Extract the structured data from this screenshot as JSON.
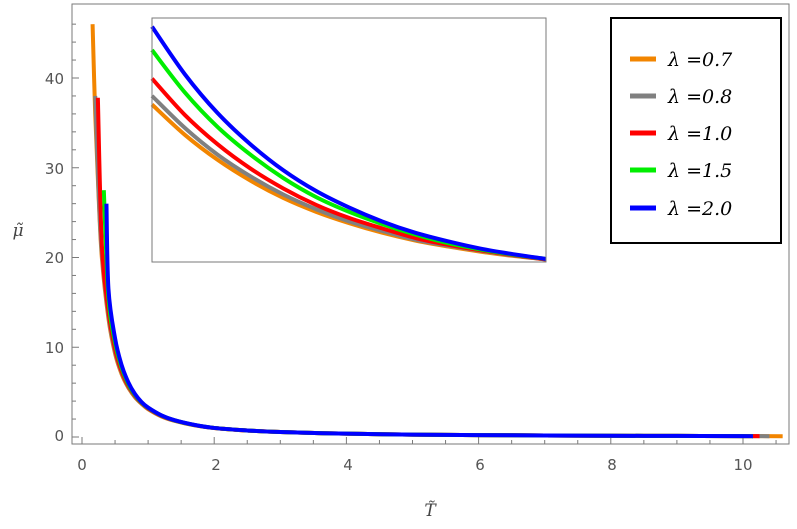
{
  "chart_data": [
    {
      "type": "line",
      "title": "",
      "xlabel": "T̃",
      "ylabel": "μ̃",
      "xlim": [
        0,
        10.9
      ],
      "ylim": [
        -1,
        47
      ],
      "x_ticks": [
        0,
        2,
        4,
        6,
        8,
        10
      ],
      "y_ticks": [
        0,
        10,
        20,
        30,
        40
      ],
      "grid": false,
      "legend_position": "top-right",
      "series": [
        {
          "name": "λ =0.7",
          "color": "#F28500",
          "x": [
            0.16,
            0.2,
            0.25,
            0.3,
            0.4,
            0.5,
            0.6,
            0.7,
            0.8,
            0.9,
            1.0,
            1.2,
            1.4,
            1.7,
            2.0,
            2.5,
            3.0,
            4.0,
            5.0,
            6.0,
            7.0,
            8.0,
            9.0,
            10.0,
            10.6
          ],
          "y": [
            46.0,
            36.0,
            27.0,
            20.0,
            13.2,
            9.3,
            7.0,
            5.5,
            4.45,
            3.7,
            3.1,
            2.3,
            1.8,
            1.3,
            1.0,
            0.72,
            0.55,
            0.37,
            0.27,
            0.21,
            0.17,
            0.14,
            0.12,
            0.1,
            0.09
          ]
        },
        {
          "name": "λ =0.8",
          "color": "#808080",
          "x": [
            0.2,
            0.25,
            0.3,
            0.4,
            0.5,
            0.6,
            0.7,
            0.8,
            0.9,
            1.0,
            1.2,
            1.4,
            1.7,
            2.0,
            2.5,
            3.0,
            4.0,
            5.0,
            6.0,
            7.0,
            8.0,
            9.0,
            10.0,
            10.4
          ],
          "y": [
            38.0,
            27.5,
            20.5,
            13.5,
            9.5,
            7.15,
            5.6,
            4.5,
            3.75,
            3.15,
            2.33,
            1.82,
            1.32,
            1.0,
            0.72,
            0.55,
            0.37,
            0.27,
            0.21,
            0.17,
            0.14,
            0.12,
            0.1,
            0.09
          ]
        },
        {
          "name": "λ =1.0",
          "color": "#FF0000",
          "x": [
            0.24,
            0.3,
            0.4,
            0.5,
            0.6,
            0.7,
            0.8,
            0.9,
            1.0,
            1.2,
            1.4,
            1.7,
            2.0,
            2.5,
            3.0,
            4.0,
            5.0,
            6.0,
            7.0,
            8.0,
            9.0,
            10.0,
            10.25
          ],
          "y": [
            37.8,
            21.5,
            14.0,
            9.8,
            7.3,
            5.7,
            4.6,
            3.8,
            3.2,
            2.36,
            1.84,
            1.33,
            1.0,
            0.72,
            0.55,
            0.37,
            0.27,
            0.21,
            0.17,
            0.14,
            0.12,
            0.1,
            0.09
          ]
        },
        {
          "name": "λ =1.5",
          "color": "#00EE00",
          "x": [
            0.33,
            0.4,
            0.5,
            0.6,
            0.7,
            0.8,
            0.9,
            1.0,
            1.2,
            1.4,
            1.7,
            2.0,
            2.5,
            3.0,
            4.0,
            5.0,
            6.0,
            7.0,
            8.0,
            9.0,
            10.0,
            10.15
          ],
          "y": [
            27.5,
            15.5,
            10.5,
            7.7,
            5.9,
            4.7,
            3.85,
            3.25,
            2.4,
            1.86,
            1.34,
            1.01,
            0.73,
            0.55,
            0.37,
            0.27,
            0.21,
            0.17,
            0.14,
            0.12,
            0.1,
            0.09
          ]
        },
        {
          "name": "λ =2.0",
          "color": "#0000FF",
          "x": [
            0.37,
            0.4,
            0.5,
            0.6,
            0.7,
            0.8,
            0.9,
            1.0,
            1.2,
            1.4,
            1.7,
            2.0,
            2.5,
            3.0,
            4.0,
            5.0,
            6.0,
            7.0,
            8.0,
            9.0,
            10.0,
            10.15
          ],
          "y": [
            26.0,
            16.5,
            11.0,
            8.0,
            6.1,
            4.8,
            3.9,
            3.28,
            2.42,
            1.87,
            1.35,
            1.01,
            0.73,
            0.55,
            0.37,
            0.27,
            0.21,
            0.17,
            0.14,
            0.12,
            0.1,
            0.09
          ]
        }
      ]
    },
    {
      "type": "line",
      "title": "",
      "xlabel": "",
      "ylabel": "",
      "ticks_shown": false,
      "xlim": [
        1.0,
        2.2
      ],
      "ylim": [
        0.88,
        3.7
      ],
      "series": [
        {
          "name": "λ =0.7",
          "color": "#F28500",
          "x": [
            1.0,
            1.1,
            1.2,
            1.3,
            1.4,
            1.5,
            1.6,
            1.7,
            1.8,
            1.9,
            2.0,
            2.1,
            2.2
          ],
          "y": [
            2.7,
            2.35,
            2.06,
            1.82,
            1.62,
            1.46,
            1.33,
            1.22,
            1.13,
            1.06,
            1.0,
            0.95,
            0.91
          ]
        },
        {
          "name": "λ =0.8",
          "color": "#808080",
          "x": [
            1.0,
            1.1,
            1.2,
            1.3,
            1.4,
            1.5,
            1.6,
            1.7,
            1.8,
            1.9,
            2.0,
            2.1,
            2.2
          ],
          "y": [
            2.8,
            2.43,
            2.12,
            1.87,
            1.66,
            1.49,
            1.35,
            1.24,
            1.14,
            1.07,
            1.01,
            0.955,
            0.91
          ]
        },
        {
          "name": "λ =1.0",
          "color": "#FF0000",
          "x": [
            1.0,
            1.1,
            1.2,
            1.3,
            1.4,
            1.5,
            1.6,
            1.7,
            1.8,
            1.9,
            2.0,
            2.1,
            2.2
          ],
          "y": [
            3.0,
            2.58,
            2.24,
            1.96,
            1.73,
            1.54,
            1.39,
            1.27,
            1.16,
            1.08,
            1.015,
            0.96,
            0.91
          ]
        },
        {
          "name": "λ =1.5",
          "color": "#00EE00",
          "x": [
            1.0,
            1.1,
            1.2,
            1.3,
            1.4,
            1.5,
            1.6,
            1.7,
            1.8,
            1.9,
            2.0,
            2.1,
            2.2
          ],
          "y": [
            3.33,
            2.84,
            2.44,
            2.12,
            1.85,
            1.63,
            1.46,
            1.32,
            1.2,
            1.1,
            1.025,
            0.965,
            0.915
          ]
        },
        {
          "name": "λ =2.0",
          "color": "#0000FF",
          "x": [
            1.0,
            1.1,
            1.2,
            1.3,
            1.4,
            1.5,
            1.6,
            1.7,
            1.8,
            1.9,
            2.0,
            2.1,
            2.2
          ],
          "y": [
            3.6,
            3.05,
            2.6,
            2.24,
            1.94,
            1.7,
            1.51,
            1.35,
            1.22,
            1.12,
            1.035,
            0.97,
            0.915
          ]
        }
      ]
    }
  ]
}
